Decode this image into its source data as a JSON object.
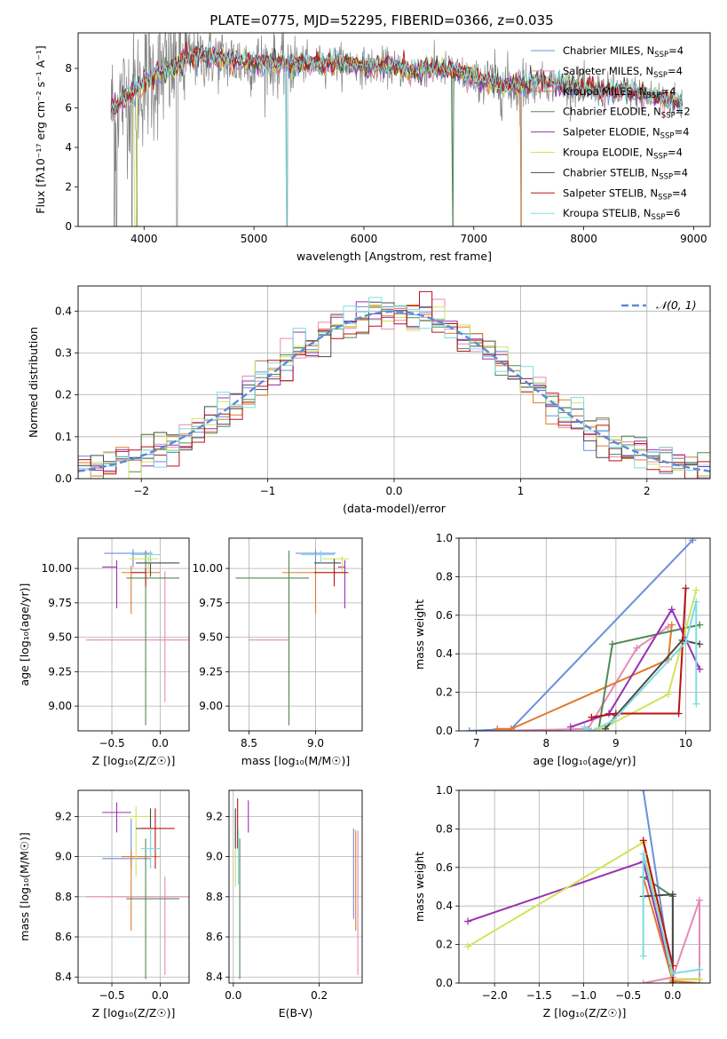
{
  "figure": {
    "title": "PLATE=0775, MJD=52295, FIBERID=0366, z=0.035"
  },
  "series_styles": [
    {
      "name": "Chabrier MILES, N$_{SSP}$=4",
      "color": "#6a8fd9"
    },
    {
      "name": "Salpeter MILES, N$_{SSP}$=4",
      "color": "#e58ab8"
    },
    {
      "name": "Kroupa MILES, N$_{SSP}$=4",
      "color": "#e07a2a"
    },
    {
      "name": "Chabrier ELODIE, N$_{SSP}$=2",
      "color": "#4f8a55"
    },
    {
      "name": "Salpeter ELODIE, N$_{SSP}$=4",
      "color": "#9b30b0"
    },
    {
      "name": "Kroupa ELODIE, N$_{SSP}$=4",
      "color": "#d2e35a"
    },
    {
      "name": "Chabrier STELIB, N$_{SSP}$=4",
      "color": "#4a4a4a"
    },
    {
      "name": "Salpeter STELIB, N$_{SSP}$=4",
      "color": "#b81414"
    },
    {
      "name": "Kroupa STELIB, N$_{SSP}$=6",
      "color": "#7fdbe0"
    }
  ],
  "chart_data": [
    {
      "id": "spectrum",
      "type": "line",
      "xlabel": "wavelength [Angstrom, rest frame]",
      "ylabel": "Flux [f$_\\lambda$10$^{-17}$ erg cm$^{-2}$ s$^{-1}$ A$^{-1}$]",
      "xlim": [
        3400,
        9150
      ],
      "ylim": [
        0,
        9.8
      ],
      "xticks": [
        4000,
        5000,
        6000,
        7000,
        8000,
        9000
      ],
      "yticks": [
        0,
        2,
        4,
        6,
        8
      ],
      "legend": "upper right",
      "continuum": {
        "x": [
          3700,
          3800,
          3900,
          4000,
          4100,
          4200,
          4300,
          4400,
          4600,
          4800,
          5000,
          5200,
          5400,
          5600,
          5800,
          6000,
          6200,
          6400,
          6600,
          6800,
          7000,
          7200,
          7400,
          7600,
          7800,
          8000,
          8200,
          8400,
          8600,
          8800,
          8900
        ],
        "y": [
          5.9,
          6.4,
          6.8,
          7.3,
          7.6,
          7.9,
          8.1,
          8.5,
          8.6,
          8.4,
          8.3,
          8.3,
          8.2,
          8.25,
          8.3,
          8.1,
          8.1,
          7.9,
          8.0,
          7.9,
          7.5,
          7.2,
          7.1,
          7.3,
          7.2,
          7.0,
          6.8,
          6.8,
          6.6,
          6.4,
          6.2
        ]
      },
      "notes_dips": [
        3730,
        3750,
        3890,
        3935,
        4300,
        5300,
        6810,
        7430
      ]
    },
    {
      "id": "residuals",
      "type": "step",
      "xlabel": "(data-model)/error",
      "ylabel": "Normed distribution",
      "xlim": [
        -2.5,
        2.5
      ],
      "ylim": [
        0,
        0.46
      ],
      "xticks": [
        -2,
        -1,
        0,
        1,
        2
      ],
      "yticks": [
        0.0,
        0.1,
        0.2,
        0.3,
        0.4
      ],
      "legend": "upper right",
      "gaussian_label": "$\\mathcal{N}(0, 1)$",
      "bin_width": 0.1
    },
    {
      "id": "age_vs_Z",
      "type": "errorbar",
      "xlabel": "Z [log$_{10}$(Z/Z$_\\odot$)]",
      "ylabel": "age  [log$_{10}$(age/yr)]",
      "xlim": [
        -0.85,
        0.3
      ],
      "ylim": [
        8.82,
        10.22
      ],
      "xticks": [
        -0.5,
        0.0
      ],
      "yticks": [
        9.0,
        9.25,
        9.5,
        9.75,
        10.0
      ],
      "points": [
        {
          "x": -0.28,
          "y": 10.11,
          "xerr": [
            0.3,
            0.2
          ],
          "yerr": [
            0.1,
            0.03
          ]
        },
        {
          "x": 0.05,
          "y": 9.48,
          "xerr": [
            0.82,
            0.28
          ],
          "yerr": [
            0.45,
            0.5
          ]
        },
        {
          "x": -0.3,
          "y": 9.97,
          "xerr": [
            0.1,
            0.3
          ],
          "yerr": [
            0.3,
            0.05
          ]
        },
        {
          "x": -0.15,
          "y": 9.93,
          "xerr": [
            0.2,
            0.35
          ],
          "yerr": [
            1.07,
            0.2
          ]
        },
        {
          "x": -0.45,
          "y": 10.01,
          "xerr": [
            0.15,
            0.0
          ],
          "yerr": [
            0.3,
            0.05
          ]
        },
        {
          "x": -0.12,
          "y": 10.07,
          "xerr": [
            0.2,
            0.1
          ],
          "yerr": [
            0.1,
            0.02
          ]
        },
        {
          "x": -0.1,
          "y": 10.04,
          "xerr": [
            0.15,
            0.3
          ],
          "yerr": [
            0.1,
            0.03
          ]
        },
        {
          "x": -0.15,
          "y": 9.97,
          "xerr": [
            0.15,
            0.0
          ],
          "yerr": [
            0.1,
            0.03
          ]
        },
        {
          "x": -0.1,
          "y": 10.1,
          "xerr": [
            0.2,
            0.1
          ],
          "yerr": [
            0.06,
            0.03
          ]
        }
      ]
    },
    {
      "id": "age_vs_mass",
      "type": "errorbar",
      "xlabel": "mass [log$_{10}$(M/M$_\\odot$)]",
      "ylabel": "",
      "xlim": [
        8.35,
        9.35
      ],
      "ylim": [
        8.82,
        10.22
      ],
      "xticks": [
        8.5,
        9.0
      ],
      "yticks": [
        9.0,
        9.25,
        9.5,
        9.75,
        10.0
      ],
      "points": [
        {
          "x": 9.0,
          "y": 10.11,
          "xerr": [
            0.15,
            0.15
          ],
          "yerr": [
            0.1,
            0.03
          ]
        },
        {
          "x": 8.8,
          "y": 9.48,
          "xerr": [
            0.3,
            0.0
          ],
          "yerr": [
            0.45,
            0.5
          ]
        },
        {
          "x": 9.0,
          "y": 9.97,
          "xerr": [
            0.25,
            0.25
          ],
          "yerr": [
            0.3,
            0.05
          ]
        },
        {
          "x": 8.8,
          "y": 9.93,
          "xerr": [
            0.4,
            0.15
          ],
          "yerr": [
            1.07,
            0.2
          ]
        },
        {
          "x": 9.22,
          "y": 10.01,
          "xerr": [
            0.05,
            0.0
          ],
          "yerr": [
            0.3,
            0.05
          ]
        },
        {
          "x": 9.2,
          "y": 10.07,
          "xerr": [
            0.15,
            0.05
          ],
          "yerr": [
            0.1,
            0.02
          ]
        },
        {
          "x": 9.14,
          "y": 10.04,
          "xerr": [
            0.15,
            0.05
          ],
          "yerr": [
            0.1,
            0.03
          ]
        },
        {
          "x": 9.14,
          "y": 9.97,
          "xerr": [
            0.15,
            0.1
          ],
          "yerr": [
            0.1,
            0.03
          ]
        },
        {
          "x": 9.04,
          "y": 10.1,
          "xerr": [
            0.15,
            0.1
          ],
          "yerr": [
            0.06,
            0.03
          ]
        }
      ]
    },
    {
      "id": "weight_vs_age",
      "type": "line",
      "xlabel": "age  [log$_{10}$(age/yr)]",
      "ylabel": "mass weight",
      "xlim": [
        6.75,
        10.35
      ],
      "ylim": [
        0,
        1.0
      ],
      "xticks": [
        7,
        8,
        9,
        10
      ],
      "yticks": [
        0.0,
        0.2,
        0.4,
        0.6,
        0.8,
        1.0
      ],
      "series": [
        {
          "x": [
            6.9,
            7.5,
            10.1
          ],
          "y": [
            0.0,
            0.01,
            0.99
          ]
        },
        {
          "x": [
            7.3,
            8.6,
            9.3,
            9.75
          ],
          "y": [
            0.0,
            0.01,
            0.43,
            0.54
          ]
        },
        {
          "x": [
            7.3,
            7.5,
            9.75,
            9.8
          ],
          "y": [
            0.01,
            0.01,
            0.37,
            0.55
          ]
        },
        {
          "x": [
            8.75,
            8.95,
            10.2
          ],
          "y": [
            0.0,
            0.45,
            0.55
          ]
        },
        {
          "x": [
            8.35,
            8.9,
            9.8,
            10.2
          ],
          "y": [
            0.02,
            0.09,
            0.63,
            0.32
          ]
        },
        {
          "x": [
            8.7,
            8.85,
            9.75,
            10.15
          ],
          "y": [
            0.0,
            0.02,
            0.19,
            0.73
          ]
        },
        {
          "x": [
            8.85,
            9.0,
            9.95,
            10.2
          ],
          "y": [
            0.01,
            0.08,
            0.47,
            0.45
          ]
        },
        {
          "x": [
            8.65,
            9.0,
            9.9,
            10.0
          ],
          "y": [
            0.07,
            0.09,
            0.09,
            0.74
          ]
        },
        {
          "x": [
            8.55,
            8.65,
            8.95,
            10.0,
            10.15,
            10.15
          ],
          "y": [
            0.02,
            0.0,
            0.05,
            0.46,
            0.67,
            0.14
          ]
        }
      ]
    },
    {
      "id": "mass_vs_Z",
      "type": "errorbar",
      "xlabel": "Z [log$_{10}$(Z/Z$_\\odot$)]",
      "ylabel": "mass [log$_{10}$(M/M$_\\odot$)]",
      "xlim": [
        -0.85,
        0.3
      ],
      "ylim": [
        8.37,
        9.33
      ],
      "xticks": [
        -0.5,
        0.0
      ],
      "yticks": [
        8.4,
        8.6,
        8.8,
        9.0,
        9.2
      ],
      "points": [
        {
          "x": -0.3,
          "y": 8.99,
          "xerr": [
            0.3,
            0.2
          ],
          "yerr": [
            0.05,
            0.2
          ]
        },
        {
          "x": 0.05,
          "y": 8.8,
          "xerr": [
            0.82,
            0.25
          ],
          "yerr": [
            0.39,
            0.1
          ]
        },
        {
          "x": -0.3,
          "y": 9.0,
          "xerr": [
            0.1,
            0.3
          ],
          "yerr": [
            0.37,
            0.03
          ]
        },
        {
          "x": -0.15,
          "y": 8.79,
          "xerr": [
            0.2,
            0.35
          ],
          "yerr": [
            0.4,
            0.3
          ]
        },
        {
          "x": -0.45,
          "y": 9.22,
          "xerr": [
            0.15,
            0.15
          ],
          "yerr": [
            0.1,
            0.05
          ]
        },
        {
          "x": -0.25,
          "y": 9.2,
          "xerr": [
            0.1,
            0.15
          ],
          "yerr": [
            0.3,
            0.05
          ]
        },
        {
          "x": -0.1,
          "y": 9.14,
          "xerr": [
            0.15,
            0.0
          ],
          "yerr": [
            0.2,
            0.1
          ]
        },
        {
          "x": -0.05,
          "y": 9.14,
          "xerr": [
            0.15,
            0.2
          ],
          "yerr": [
            0.2,
            0.1
          ]
        },
        {
          "x": -0.1,
          "y": 9.04,
          "xerr": [
            0.1,
            0.1
          ],
          "yerr": [
            0.1,
            0.1
          ]
        }
      ]
    },
    {
      "id": "mass_vs_ebv",
      "type": "errorbar",
      "xlabel": "E(B-V)",
      "ylabel": "",
      "xlim": [
        -0.01,
        0.3
      ],
      "ylim": [
        8.37,
        9.33
      ],
      "xticks": [
        0.0,
        0.2
      ],
      "yticks": [
        8.4,
        8.6,
        8.8,
        9.0,
        9.2
      ],
      "points": [
        {
          "x": 0.28,
          "y": 8.99,
          "xerr": [
            0,
            0
          ],
          "yerr": [
            0.3,
            0.15
          ]
        },
        {
          "x": 0.29,
          "y": 8.8,
          "xerr": [
            0,
            0
          ],
          "yerr": [
            0.39,
            0.33
          ]
        },
        {
          "x": 0.285,
          "y": 8.88,
          "xerr": [
            0,
            0
          ],
          "yerr": [
            0.25,
            0.25
          ]
        },
        {
          "x": 0.015,
          "y": 8.79,
          "xerr": [
            0,
            0
          ],
          "yerr": [
            0.4,
            0.3
          ]
        },
        {
          "x": 0.035,
          "y": 9.22,
          "xerr": [
            0,
            0
          ],
          "yerr": [
            0.1,
            0.06
          ]
        },
        {
          "x": 0.005,
          "y": 9.0,
          "xerr": [
            0,
            0
          ],
          "yerr": [
            0.15,
            0.2
          ]
        },
        {
          "x": 0.005,
          "y": 9.14,
          "xerr": [
            0,
            0
          ],
          "yerr": [
            0.1,
            0.1
          ]
        },
        {
          "x": 0.01,
          "y": 9.14,
          "xerr": [
            0,
            0
          ],
          "yerr": [
            0.1,
            0.15
          ]
        },
        {
          "x": 0.012,
          "y": 9.04,
          "xerr": [
            0,
            0
          ],
          "yerr": [
            0.18,
            0.1
          ]
        }
      ]
    },
    {
      "id": "weight_vs_Z",
      "type": "line",
      "xlabel": "Z [log$_{10}$(Z/Z$_\\odot$)]",
      "ylabel": "mass weight",
      "xlim": [
        -2.4,
        0.42
      ],
      "ylim": [
        0,
        1.0
      ],
      "xticks": [
        -2.0,
        -1.5,
        -1.0,
        -0.5,
        0.0
      ],
      "yticks": [
        0.0,
        0.2,
        0.4,
        0.6,
        0.8,
        1.0
      ],
      "series": [
        {
          "x": [
            -0.33,
            0.0,
            0.0
          ],
          "y": [
            1.0,
            0.0,
            0.0
          ]
        },
        {
          "x": [
            -0.33,
            0.0,
            0.3,
            0.3
          ],
          "y": [
            0.0,
            0.03,
            0.43,
            0.0
          ]
        },
        {
          "x": [
            -0.33,
            0.0,
            0.3
          ],
          "y": [
            0.55,
            0.01,
            0.0
          ]
        },
        {
          "x": [
            -0.33,
            0.0,
            0.0
          ],
          "y": [
            0.55,
            0.45,
            0.0
          ]
        },
        {
          "x": [
            -2.3,
            -0.33,
            0.0,
            0.3
          ],
          "y": [
            0.32,
            0.63,
            0.02,
            0.02
          ]
        },
        {
          "x": [
            -2.3,
            -0.33,
            0.0,
            0.3
          ],
          "y": [
            0.19,
            0.73,
            0.02,
            0.02
          ]
        },
        {
          "x": [
            -0.33,
            0.0,
            0.0
          ],
          "y": [
            0.45,
            0.46,
            0.0
          ]
        },
        {
          "x": [
            -0.33,
            0.0,
            0.0
          ],
          "y": [
            0.74,
            0.09,
            0.0
          ]
        },
        {
          "x": [
            -0.33,
            -0.33,
            0.0,
            0.3
          ],
          "y": [
            0.14,
            0.67,
            0.05,
            0.07
          ]
        }
      ]
    }
  ]
}
